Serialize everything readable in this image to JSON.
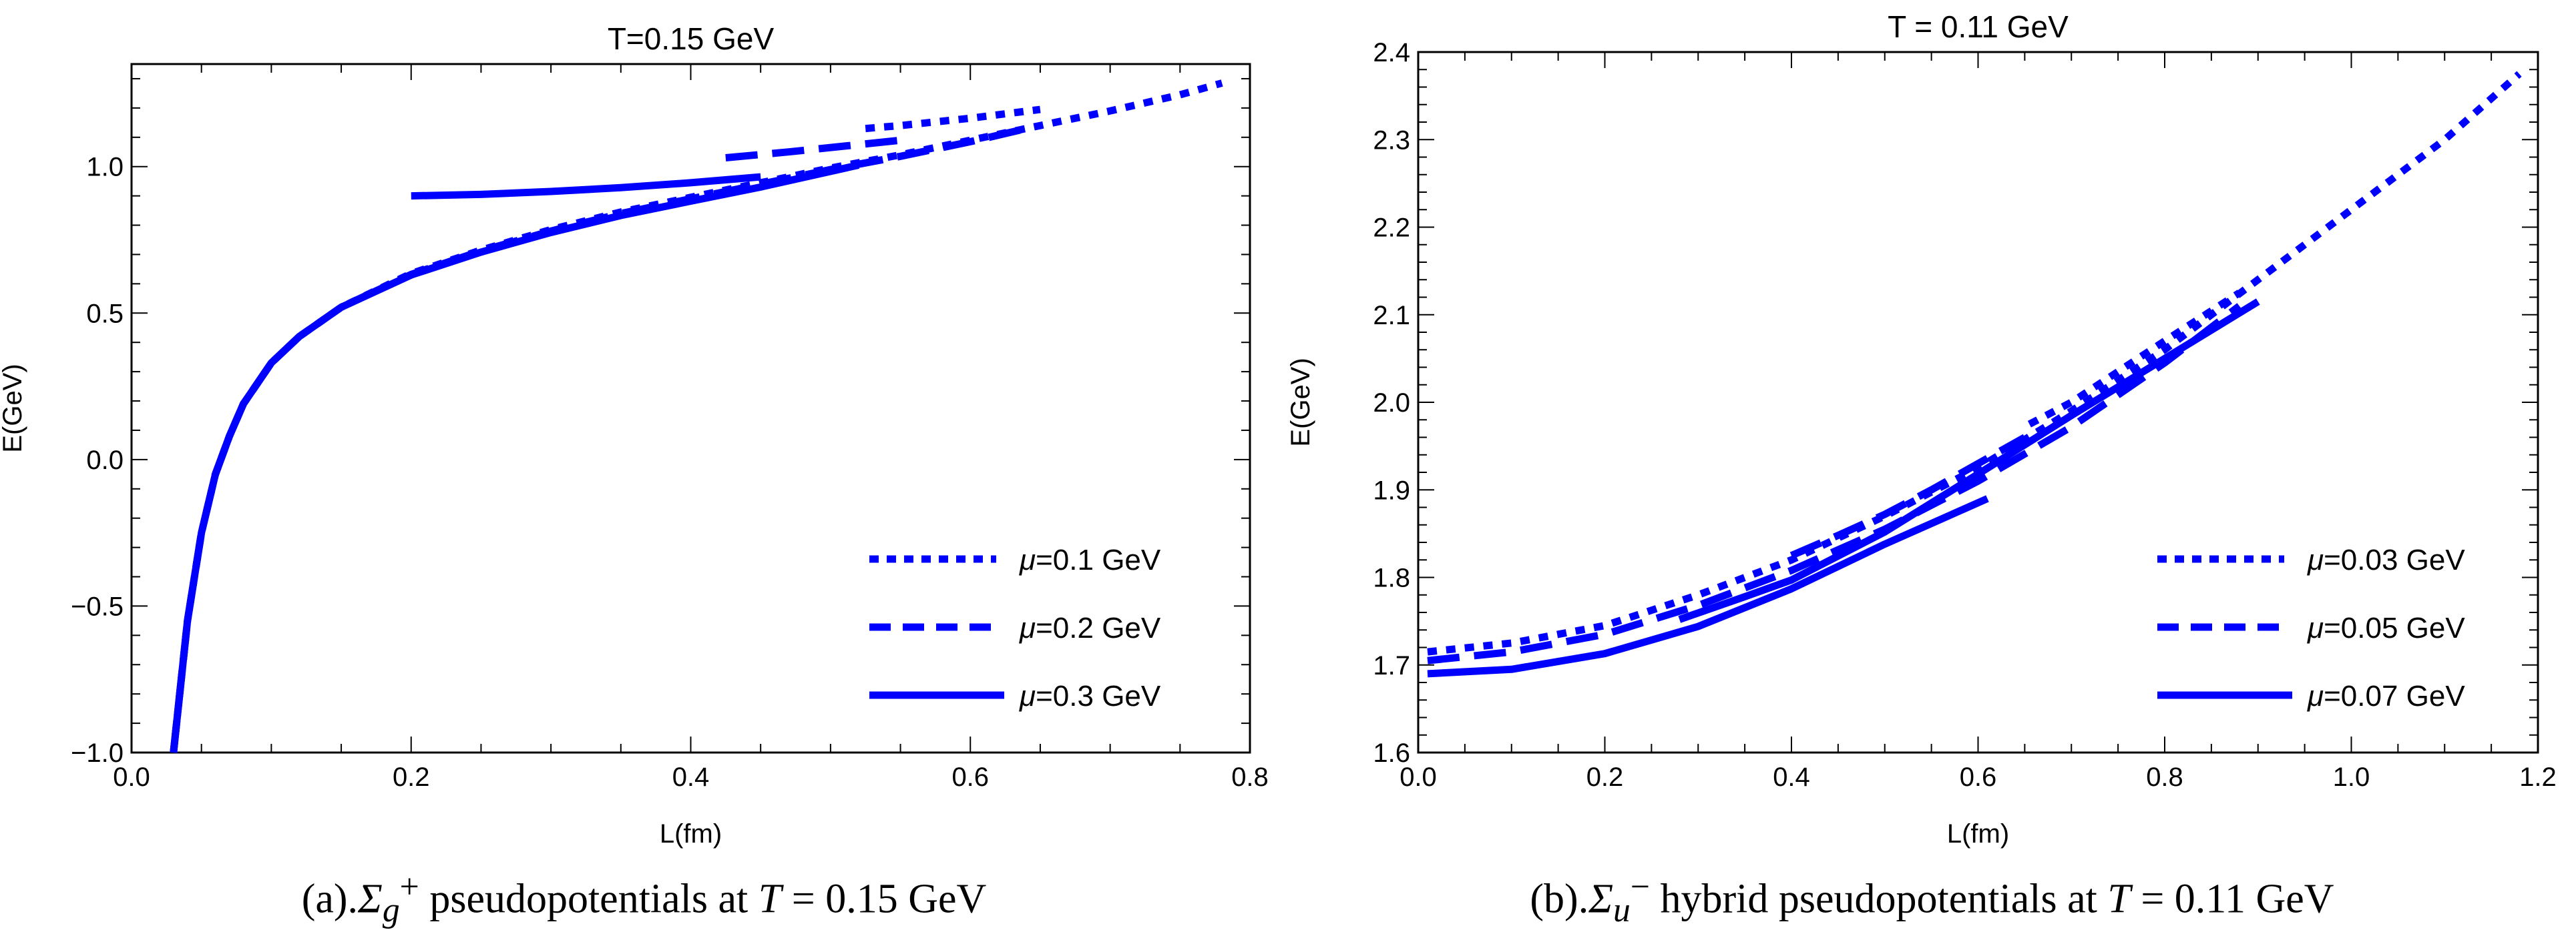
{
  "chart_data": [
    {
      "type": "line",
      "title": "T=0.15 GeV",
      "xlabel": "L(fm)",
      "ylabel": "E(GeV)",
      "xlim": [
        0.0,
        0.8
      ],
      "ylim": [
        -1.0,
        1.35
      ],
      "xticks": [
        0.0,
        0.2,
        0.4,
        0.6,
        0.8
      ],
      "xtick_labels": [
        "0.0",
        "0.2",
        "0.4",
        "0.6",
        "0.8"
      ],
      "yticks": [
        -1.0,
        -0.5,
        0.0,
        0.5,
        1.0
      ],
      "ytick_labels": [
        "−1.0",
        "−0.5",
        "0.0",
        "0.5",
        "1.0"
      ],
      "grid": false,
      "legend_position": "bottom-right",
      "caption": {
        "prefix": "(a).",
        "symbol": "Σ",
        "sub": "g",
        "sup": "+",
        "text": " pseudopotentials at ",
        "var": "T",
        "value": " = 0.15 GeV"
      },
      "series": [
        {
          "name": "μ=0.1 GeV",
          "style": "dotted",
          "color": "#0000ff",
          "branches": [
            {
              "x": [
                0.03,
                0.04,
                0.05,
                0.06,
                0.07,
                0.08,
                0.1,
                0.12,
                0.15,
                0.2,
                0.25,
                0.3,
                0.35,
                0.4,
                0.45,
                0.5,
                0.55,
                0.6,
                0.65,
                0.7,
                0.75,
                0.78
              ],
              "y": [
                -1.0,
                -0.55,
                -0.25,
                -0.05,
                0.08,
                0.19,
                0.33,
                0.42,
                0.52,
                0.635,
                0.715,
                0.785,
                0.845,
                0.895,
                0.945,
                0.995,
                1.04,
                1.09,
                1.14,
                1.19,
                1.245,
                1.285
              ]
            },
            {
              "x": [
                0.525,
                0.55,
                0.6,
                0.65
              ],
              "y": [
                1.13,
                1.14,
                1.165,
                1.195
              ]
            }
          ]
        },
        {
          "name": "μ=0.2 GeV",
          "style": "dashed",
          "color": "#0000ff",
          "branches": [
            {
              "x": [
                0.03,
                0.04,
                0.05,
                0.06,
                0.07,
                0.08,
                0.1,
                0.12,
                0.15,
                0.2,
                0.25,
                0.3,
                0.35,
                0.4,
                0.45,
                0.5,
                0.55,
                0.6,
                0.645
              ],
              "y": [
                -1.0,
                -0.55,
                -0.25,
                -0.05,
                0.08,
                0.19,
                0.33,
                0.42,
                0.52,
                0.632,
                0.712,
                0.78,
                0.84,
                0.89,
                0.94,
                0.99,
                1.035,
                1.085,
                1.135
              ]
            },
            {
              "x": [
                0.425,
                0.47,
                0.52,
                0.55
              ],
              "y": [
                1.03,
                1.05,
                1.075,
                1.09
              ]
            }
          ]
        },
        {
          "name": "μ=0.3 GeV",
          "style": "solid",
          "color": "#0000ff",
          "branches": [
            {
              "x": [
                0.03,
                0.04,
                0.05,
                0.06,
                0.07,
                0.08,
                0.1,
                0.12,
                0.15,
                0.2,
                0.25,
                0.3,
                0.35,
                0.4,
                0.45,
                0.52
              ],
              "y": [
                -1.0,
                -0.55,
                -0.25,
                -0.05,
                0.08,
                0.19,
                0.33,
                0.42,
                0.52,
                0.63,
                0.708,
                0.775,
                0.833,
                0.882,
                0.93,
                1.005
              ]
            },
            {
              "x": [
                0.2,
                0.25,
                0.3,
                0.35,
                0.4,
                0.45
              ],
              "y": [
                0.9,
                0.905,
                0.915,
                0.928,
                0.945,
                0.965
              ]
            }
          ]
        }
      ]
    },
    {
      "type": "line",
      "title": "T = 0.11 GeV",
      "xlabel": "L(fm)",
      "ylabel": "E(GeV)",
      "xlim": [
        0.0,
        1.2
      ],
      "ylim": [
        1.6,
        2.4
      ],
      "xticks": [
        0.0,
        0.2,
        0.4,
        0.6,
        0.8,
        1.0,
        1.2
      ],
      "xtick_labels": [
        "0.0",
        "0.2",
        "0.4",
        "0.6",
        "0.8",
        "1.0",
        "1.2"
      ],
      "yticks": [
        1.6,
        1.7,
        1.8,
        1.9,
        2.0,
        2.1,
        2.2,
        2.3,
        2.4
      ],
      "ytick_labels": [
        "1.6",
        "1.7",
        "1.8",
        "1.9",
        "2.0",
        "2.1",
        "2.2",
        "2.3",
        "2.4"
      ],
      "grid": false,
      "legend_position": "bottom-right",
      "caption": {
        "prefix": "(b).",
        "symbol": "Σ",
        "sub": "u",
        "sup": "−",
        "text": " hybrid pseudopotentials at ",
        "var": "T",
        "value": " = 0.11 GeV"
      },
      "series": [
        {
          "name": "μ=0.03 GeV",
          "style": "dotted",
          "color": "#0000ff",
          "branches": [
            {
              "x": [
                0.01,
                0.1,
                0.2,
                0.3,
                0.4,
                0.5,
                0.6,
                0.7,
                0.8,
                0.9,
                1.0,
                1.1,
                1.18
              ],
              "y": [
                1.715,
                1.725,
                1.745,
                1.78,
                1.82,
                1.87,
                1.925,
                1.99,
                2.06,
                2.14,
                2.22,
                2.3,
                2.375
              ]
            },
            {
              "x": [
                0.655,
                0.7,
                0.8,
                0.88
              ],
              "y": [
                1.975,
                2.0,
                2.07,
                2.125
              ]
            }
          ]
        },
        {
          "name": "μ=0.05 GeV",
          "style": "dashed",
          "color": "#0000ff",
          "branches": [
            {
              "x": [
                0.01,
                0.1,
                0.2,
                0.3,
                0.4,
                0.5,
                0.6,
                0.7,
                0.8,
                0.88
              ],
              "y": [
                1.705,
                1.715,
                1.735,
                1.768,
                1.808,
                1.855,
                1.91,
                1.972,
                2.045,
                2.11
              ]
            },
            {
              "x": [
                0.4,
                0.45,
                0.5,
                0.55,
                0.6,
                0.65
              ],
              "y": [
                1.825,
                1.848,
                1.872,
                1.9,
                1.93,
                1.96
              ]
            }
          ]
        },
        {
          "name": "μ=0.07 GeV",
          "style": "solid",
          "color": "#0000ff",
          "branches": [
            {
              "x": [
                0.01,
                0.1,
                0.2,
                0.3,
                0.4,
                0.5,
                0.61
              ],
              "y": [
                1.69,
                1.695,
                1.713,
                1.744,
                1.787,
                1.838,
                1.89
              ]
            },
            {
              "x": [
                0.28,
                0.35,
                0.4,
                0.5,
                0.6,
                0.7,
                0.8,
                0.9
              ],
              "y": [
                1.752,
                1.778,
                1.797,
                1.852,
                1.918,
                1.985,
                2.05,
                2.115
              ]
            }
          ]
        }
      ]
    }
  ]
}
